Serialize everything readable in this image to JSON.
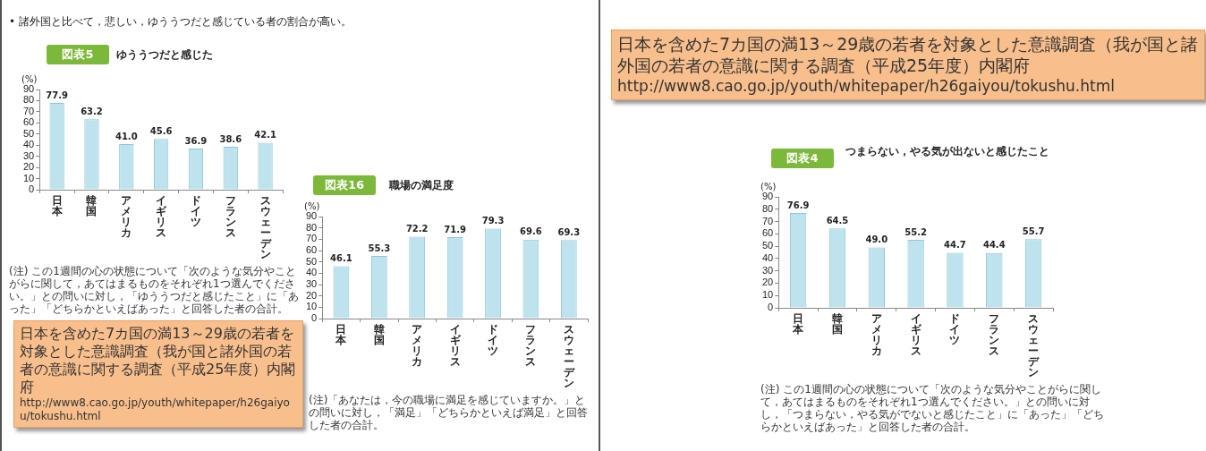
{
  "chart_data": [
    {
      "type": "bar",
      "title": "図表5",
      "subtitle": "ゆううつだと感じた",
      "ylabel": "(%)",
      "categories": [
        "日本",
        "韓国",
        "アメリカ",
        "イギリス",
        "ドイツ",
        "フランス",
        "スウェーデン"
      ],
      "values": [
        77.9,
        63.2,
        41.0,
        45.6,
        36.9,
        38.6,
        42.1
      ],
      "value_labels": [
        "77.9",
        "63.2",
        "41.0",
        "45.6",
        "36.9",
        "38.6",
        "42.1"
      ],
      "color": "#bfe3ee",
      "ylim": [
        0,
        90
      ],
      "yticks": [
        0,
        10,
        20,
        30,
        40,
        50,
        60,
        70,
        80,
        90
      ],
      "grid": false,
      "legend": false,
      "annotations": [
        "• 諸外国と比べて，悲しい，ゆううつだと感じている者の割合が高い。",
        "(注) この1週間の心の状態について「次のような気分やことがらに関して，あてはまるものをそれぞれ1つ選んでください。」との問いに対し，「ゆううつだと感じたこと」に「あった」「どちらかといえばあった」と回答した者の合計。",
        "日本を含めた7カ国の満13～29歳の若者を対象とした意識調査（我が国と諸外国の若者の意識に関する調査（平成25年度）内閣府",
        "http://www8.cao.go.jp/youth/whitepaper/h26gaiyou/tokushu.html"
      ]
    },
    {
      "type": "bar",
      "title": "図表16",
      "subtitle": "職場の満足度",
      "ylabel": "(%)",
      "categories": [
        "日本",
        "韓国",
        "アメリカ",
        "イギリス",
        "ドイツ",
        "フランス",
        "スウェーデン"
      ],
      "values": [
        46.1,
        55.3,
        72.2,
        71.9,
        79.3,
        69.6,
        69.3
      ],
      "value_labels": [
        "46.1",
        "55.3",
        "72.2",
        "71.9",
        "79.3",
        "69.6",
        "69.3"
      ],
      "color": "#bfe3ee",
      "ylim": [
        0,
        90
      ],
      "yticks": [
        0,
        10,
        20,
        30,
        40,
        50,
        60,
        70,
        80,
        90
      ],
      "grid": false,
      "legend": false,
      "annotations": [
        "(注)「あなたは，今の職場に満足を感じていますか。」との問いに対し，「満足」「どちらかといえば満足」と回答した者の合計。"
      ]
    },
    {
      "type": "bar",
      "title": "図表4",
      "subtitle": "つまらない，やる気が出ないと感じたこと",
      "ylabel": "(%)",
      "categories": [
        "日本",
        "韓国",
        "アメリカ",
        "イギリス",
        "ドイツ",
        "フランス",
        "スウェーデン"
      ],
      "values": [
        76.9,
        64.5,
        49.0,
        55.2,
        44.7,
        44.4,
        55.7
      ],
      "value_labels": [
        "76.9",
        "64.5",
        "49.0",
        "55.2",
        "44.7",
        "44.4",
        "55.7"
      ],
      "color": "#bfe3ee",
      "ylim": [
        0,
        90
      ],
      "yticks": [
        0,
        10,
        20,
        30,
        40,
        50,
        60,
        70,
        80,
        90
      ],
      "grid": false,
      "legend": false,
      "annotations": [
        "(注) この1週間の心の状態について「次のような気分やことがらに関して，あてはまるものをそれぞれ1つ選んでください。」との問いに対し，「つまらない，やる気がでないと感じたこと」に「あった」「どちらかといえばあった」と回答した者の合計。",
        "日本を含めた7カ国の満13～29歳の若者を対象とした意識調査（我が国と諸外国の若者の意識に関する調査（平成25年度）内閣府",
        "http://www8.cao.go.jp/youth/whitepaper/h26gaiyou/tokushu.html"
      ]
    }
  ]
}
